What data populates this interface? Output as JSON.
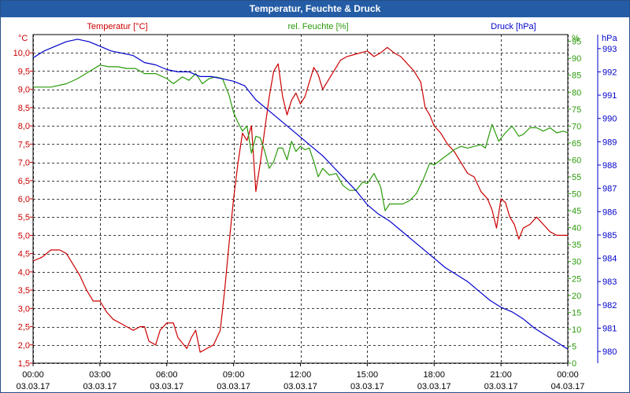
{
  "window": {
    "title": "Temperatur, Feuchte & Druck"
  },
  "chart_data": {
    "type": "line",
    "title": "Temperatur, Feuchte & Druck",
    "x_ticks": [
      {
        "time": "00:00",
        "date": "03.03.17"
      },
      {
        "time": "03:00",
        "date": "03.03.17"
      },
      {
        "time": "06:00",
        "date": "03.03.17"
      },
      {
        "time": "09:00",
        "date": "03.03.17"
      },
      {
        "time": "12:00",
        "date": "03.03.17"
      },
      {
        "time": "15:00",
        "date": "03.03.17"
      },
      {
        "time": "18:00",
        "date": "03.03.17"
      },
      {
        "time": "21:00",
        "date": "03.03.17"
      },
      {
        "time": "00:00",
        "date": "04.03.17"
      }
    ],
    "xlim": [
      0,
      24
    ],
    "grid": true,
    "axes": {
      "temperature": {
        "label": "Temperatur [°C]",
        "unit": "°C",
        "color": "#cc0000",
        "ylim": [
          1.5,
          10.5
        ],
        "ticks": [
          "1,5",
          "2,0",
          "2,5",
          "3,0",
          "3,5",
          "4,0",
          "4,5",
          "5,0",
          "5,5",
          "6,0",
          "6,5",
          "7,0",
          "7,5",
          "8,0",
          "8,5",
          "9,0",
          "9,5",
          "10,0"
        ]
      },
      "humidity": {
        "label": "rel. Feuchte [%]",
        "unit": "%",
        "color": "#2a9a0a",
        "ylim": [
          0,
          97
        ],
        "ticks": [
          "0",
          "5",
          "10",
          "15",
          "20",
          "25",
          "30",
          "35",
          "40",
          "45",
          "50",
          "55",
          "60",
          "65",
          "70",
          "75",
          "80",
          "85",
          "90",
          "95"
        ]
      },
      "pressure": {
        "label": "Druck [hPa]",
        "unit": "hPa",
        "color": "#0000cc",
        "ylim": [
          979.5,
          993.6
        ],
        "ticks": [
          "980",
          "981",
          "982",
          "983",
          "984",
          "985",
          "986",
          "987",
          "988",
          "989",
          "990",
          "991",
          "992",
          "993"
        ]
      }
    },
    "series": [
      {
        "name": "Temperatur",
        "axis": "temperature",
        "color": "#cc0000",
        "points": [
          [
            0,
            4.3
          ],
          [
            0.4,
            4.4
          ],
          [
            0.8,
            4.6
          ],
          [
            1.2,
            4.6
          ],
          [
            1.5,
            4.5
          ],
          [
            1.8,
            4.2
          ],
          [
            2.1,
            3.9
          ],
          [
            2.4,
            3.5
          ],
          [
            2.7,
            3.2
          ],
          [
            3.0,
            3.2
          ],
          [
            3.3,
            2.9
          ],
          [
            3.6,
            2.7
          ],
          [
            3.9,
            2.6
          ],
          [
            4.2,
            2.5
          ],
          [
            4.5,
            2.4
          ],
          [
            4.8,
            2.5
          ],
          [
            5.0,
            2.5
          ],
          [
            5.2,
            2.1
          ],
          [
            5.5,
            2.0
          ],
          [
            5.7,
            2.4
          ],
          [
            6.0,
            2.6
          ],
          [
            6.3,
            2.6
          ],
          [
            6.5,
            2.2
          ],
          [
            6.9,
            1.9
          ],
          [
            7.1,
            2.2
          ],
          [
            7.3,
            2.4
          ],
          [
            7.5,
            1.8
          ],
          [
            7.8,
            1.9
          ],
          [
            8.1,
            2.0
          ],
          [
            8.4,
            2.4
          ],
          [
            8.6,
            3.5
          ],
          [
            8.8,
            4.8
          ],
          [
            9.0,
            6.0
          ],
          [
            9.2,
            7.0
          ],
          [
            9.4,
            7.8
          ],
          [
            9.6,
            7.6
          ],
          [
            9.8,
            8.0
          ],
          [
            10.0,
            6.2
          ],
          [
            10.2,
            7.0
          ],
          [
            10.4,
            7.9
          ],
          [
            10.6,
            8.8
          ],
          [
            10.8,
            9.5
          ],
          [
            11.0,
            9.7
          ],
          [
            11.2,
            8.8
          ],
          [
            11.4,
            8.3
          ],
          [
            11.6,
            8.7
          ],
          [
            11.8,
            8.9
          ],
          [
            12.0,
            8.6
          ],
          [
            12.2,
            8.8
          ],
          [
            12.4,
            9.2
          ],
          [
            12.6,
            9.6
          ],
          [
            12.8,
            9.4
          ],
          [
            13.0,
            9.0
          ],
          [
            13.2,
            9.2
          ],
          [
            13.4,
            9.4
          ],
          [
            13.6,
            9.6
          ],
          [
            13.8,
            9.8
          ],
          [
            14.1,
            9.9
          ],
          [
            14.4,
            9.95
          ],
          [
            14.7,
            10.0
          ],
          [
            15.0,
            10.05
          ],
          [
            15.3,
            9.9
          ],
          [
            15.6,
            10.0
          ],
          [
            15.9,
            10.15
          ],
          [
            16.2,
            10.0
          ],
          [
            16.5,
            9.9
          ],
          [
            16.8,
            9.7
          ],
          [
            17.1,
            9.5
          ],
          [
            17.4,
            9.2
          ],
          [
            17.6,
            8.5
          ],
          [
            17.8,
            8.3
          ],
          [
            18.0,
            8.0
          ],
          [
            18.3,
            7.8
          ],
          [
            18.6,
            7.5
          ],
          [
            18.9,
            7.3
          ],
          [
            19.2,
            7.0
          ],
          [
            19.5,
            6.7
          ],
          [
            19.8,
            6.6
          ],
          [
            20.1,
            6.2
          ],
          [
            20.4,
            6.0
          ],
          [
            20.6,
            5.7
          ],
          [
            20.8,
            5.2
          ],
          [
            21.0,
            6.0
          ],
          [
            21.2,
            5.9
          ],
          [
            21.4,
            5.5
          ],
          [
            21.6,
            5.3
          ],
          [
            21.8,
            4.9
          ],
          [
            22.0,
            5.2
          ],
          [
            22.3,
            5.3
          ],
          [
            22.6,
            5.5
          ],
          [
            22.9,
            5.3
          ],
          [
            23.2,
            5.1
          ],
          [
            23.5,
            5.0
          ],
          [
            23.8,
            5.0
          ],
          [
            24.0,
            5.0
          ]
        ]
      },
      {
        "name": "rel. Feuchte",
        "axis": "humidity",
        "color": "#2a9a0a",
        "points": [
          [
            0,
            81.5
          ],
          [
            0.8,
            81.5
          ],
          [
            1.5,
            82.5
          ],
          [
            2.0,
            84
          ],
          [
            2.5,
            86
          ],
          [
            3.0,
            88
          ],
          [
            3.4,
            87.5
          ],
          [
            3.8,
            87.5
          ],
          [
            4.2,
            87
          ],
          [
            4.6,
            87
          ],
          [
            5.0,
            85.5
          ],
          [
            5.5,
            85.5
          ],
          [
            6.0,
            84
          ],
          [
            6.3,
            82.5
          ],
          [
            6.7,
            84.5
          ],
          [
            7.0,
            83.5
          ],
          [
            7.3,
            85.5
          ],
          [
            7.6,
            82.5
          ],
          [
            7.9,
            84
          ],
          [
            8.2,
            84.5
          ],
          [
            8.5,
            84
          ],
          [
            8.8,
            79
          ],
          [
            9.0,
            74
          ],
          [
            9.2,
            71
          ],
          [
            9.4,
            68.5
          ],
          [
            9.6,
            70
          ],
          [
            9.8,
            62
          ],
          [
            10.0,
            67
          ],
          [
            10.2,
            66.5
          ],
          [
            10.4,
            62.5
          ],
          [
            10.6,
            57.5
          ],
          [
            10.8,
            59.5
          ],
          [
            11.0,
            63.5
          ],
          [
            11.2,
            63.5
          ],
          [
            11.4,
            60
          ],
          [
            11.6,
            65.5
          ],
          [
            11.8,
            62.5
          ],
          [
            12.0,
            64
          ],
          [
            12.2,
            63
          ],
          [
            12.4,
            63.5
          ],
          [
            12.6,
            59.5
          ],
          [
            12.8,
            55
          ],
          [
            13.0,
            57.5
          ],
          [
            13.3,
            55.5
          ],
          [
            13.6,
            56
          ],
          [
            13.9,
            52.5
          ],
          [
            14.2,
            51
          ],
          [
            14.5,
            51
          ],
          [
            14.8,
            53.5
          ],
          [
            15.0,
            53
          ],
          [
            15.3,
            56
          ],
          [
            15.6,
            52
          ],
          [
            15.8,
            45
          ],
          [
            16.0,
            47
          ],
          [
            16.3,
            47
          ],
          [
            16.6,
            47
          ],
          [
            16.9,
            48
          ],
          [
            17.2,
            50
          ],
          [
            17.5,
            54
          ],
          [
            17.8,
            59
          ],
          [
            18.0,
            58.5
          ],
          [
            18.3,
            60
          ],
          [
            18.6,
            61.5
          ],
          [
            18.9,
            63
          ],
          [
            19.2,
            64
          ],
          [
            19.5,
            63.5
          ],
          [
            19.8,
            64
          ],
          [
            20.1,
            64.5
          ],
          [
            20.3,
            63.5
          ],
          [
            20.6,
            70.5
          ],
          [
            20.9,
            65.5
          ],
          [
            21.2,
            68
          ],
          [
            21.5,
            70
          ],
          [
            21.8,
            67
          ],
          [
            22.0,
            67.5
          ],
          [
            22.3,
            69.5
          ],
          [
            22.6,
            69.5
          ],
          [
            22.9,
            68.5
          ],
          [
            23.2,
            69.5
          ],
          [
            23.5,
            68
          ],
          [
            23.8,
            68.5
          ],
          [
            24.0,
            68
          ]
        ]
      },
      {
        "name": "Druck",
        "axis": "pressure",
        "color": "#0000cc",
        "points": [
          [
            0,
            992.6
          ],
          [
            0.5,
            992.9
          ],
          [
            1.0,
            993.1
          ],
          [
            1.5,
            993.3
          ],
          [
            2.0,
            993.4
          ],
          [
            2.5,
            993.3
          ],
          [
            3.0,
            993.1
          ],
          [
            3.5,
            992.9
          ],
          [
            4.0,
            992.8
          ],
          [
            4.5,
            992.7
          ],
          [
            5.0,
            992.4
          ],
          [
            5.5,
            992.3
          ],
          [
            6.0,
            992.1
          ],
          [
            6.5,
            992.0
          ],
          [
            7.0,
            992.0
          ],
          [
            7.5,
            991.8
          ],
          [
            8.0,
            991.8
          ],
          [
            8.5,
            991.7
          ],
          [
            9.0,
            991.6
          ],
          [
            9.5,
            991.4
          ],
          [
            10.0,
            990.8
          ],
          [
            10.5,
            990.4
          ],
          [
            11.0,
            990.0
          ],
          [
            11.5,
            989.6
          ],
          [
            12.0,
            989.2
          ],
          [
            12.5,
            988.8
          ],
          [
            13.0,
            988.4
          ],
          [
            13.5,
            987.9
          ],
          [
            14.0,
            987.4
          ],
          [
            14.5,
            986.9
          ],
          [
            15.0,
            986.3
          ],
          [
            15.5,
            985.9
          ],
          [
            16.0,
            985.6
          ],
          [
            16.5,
            985.2
          ],
          [
            17.0,
            984.8
          ],
          [
            17.5,
            984.4
          ],
          [
            18.0,
            984.0
          ],
          [
            18.5,
            983.6
          ],
          [
            19.0,
            983.3
          ],
          [
            19.5,
            983.0
          ],
          [
            20.0,
            982.6
          ],
          [
            20.5,
            982.2
          ],
          [
            21.0,
            981.9
          ],
          [
            21.5,
            981.7
          ],
          [
            22.0,
            981.4
          ],
          [
            22.5,
            981.0
          ],
          [
            23.0,
            980.7
          ],
          [
            23.5,
            980.4
          ],
          [
            24.0,
            980.1
          ]
        ]
      }
    ]
  }
}
